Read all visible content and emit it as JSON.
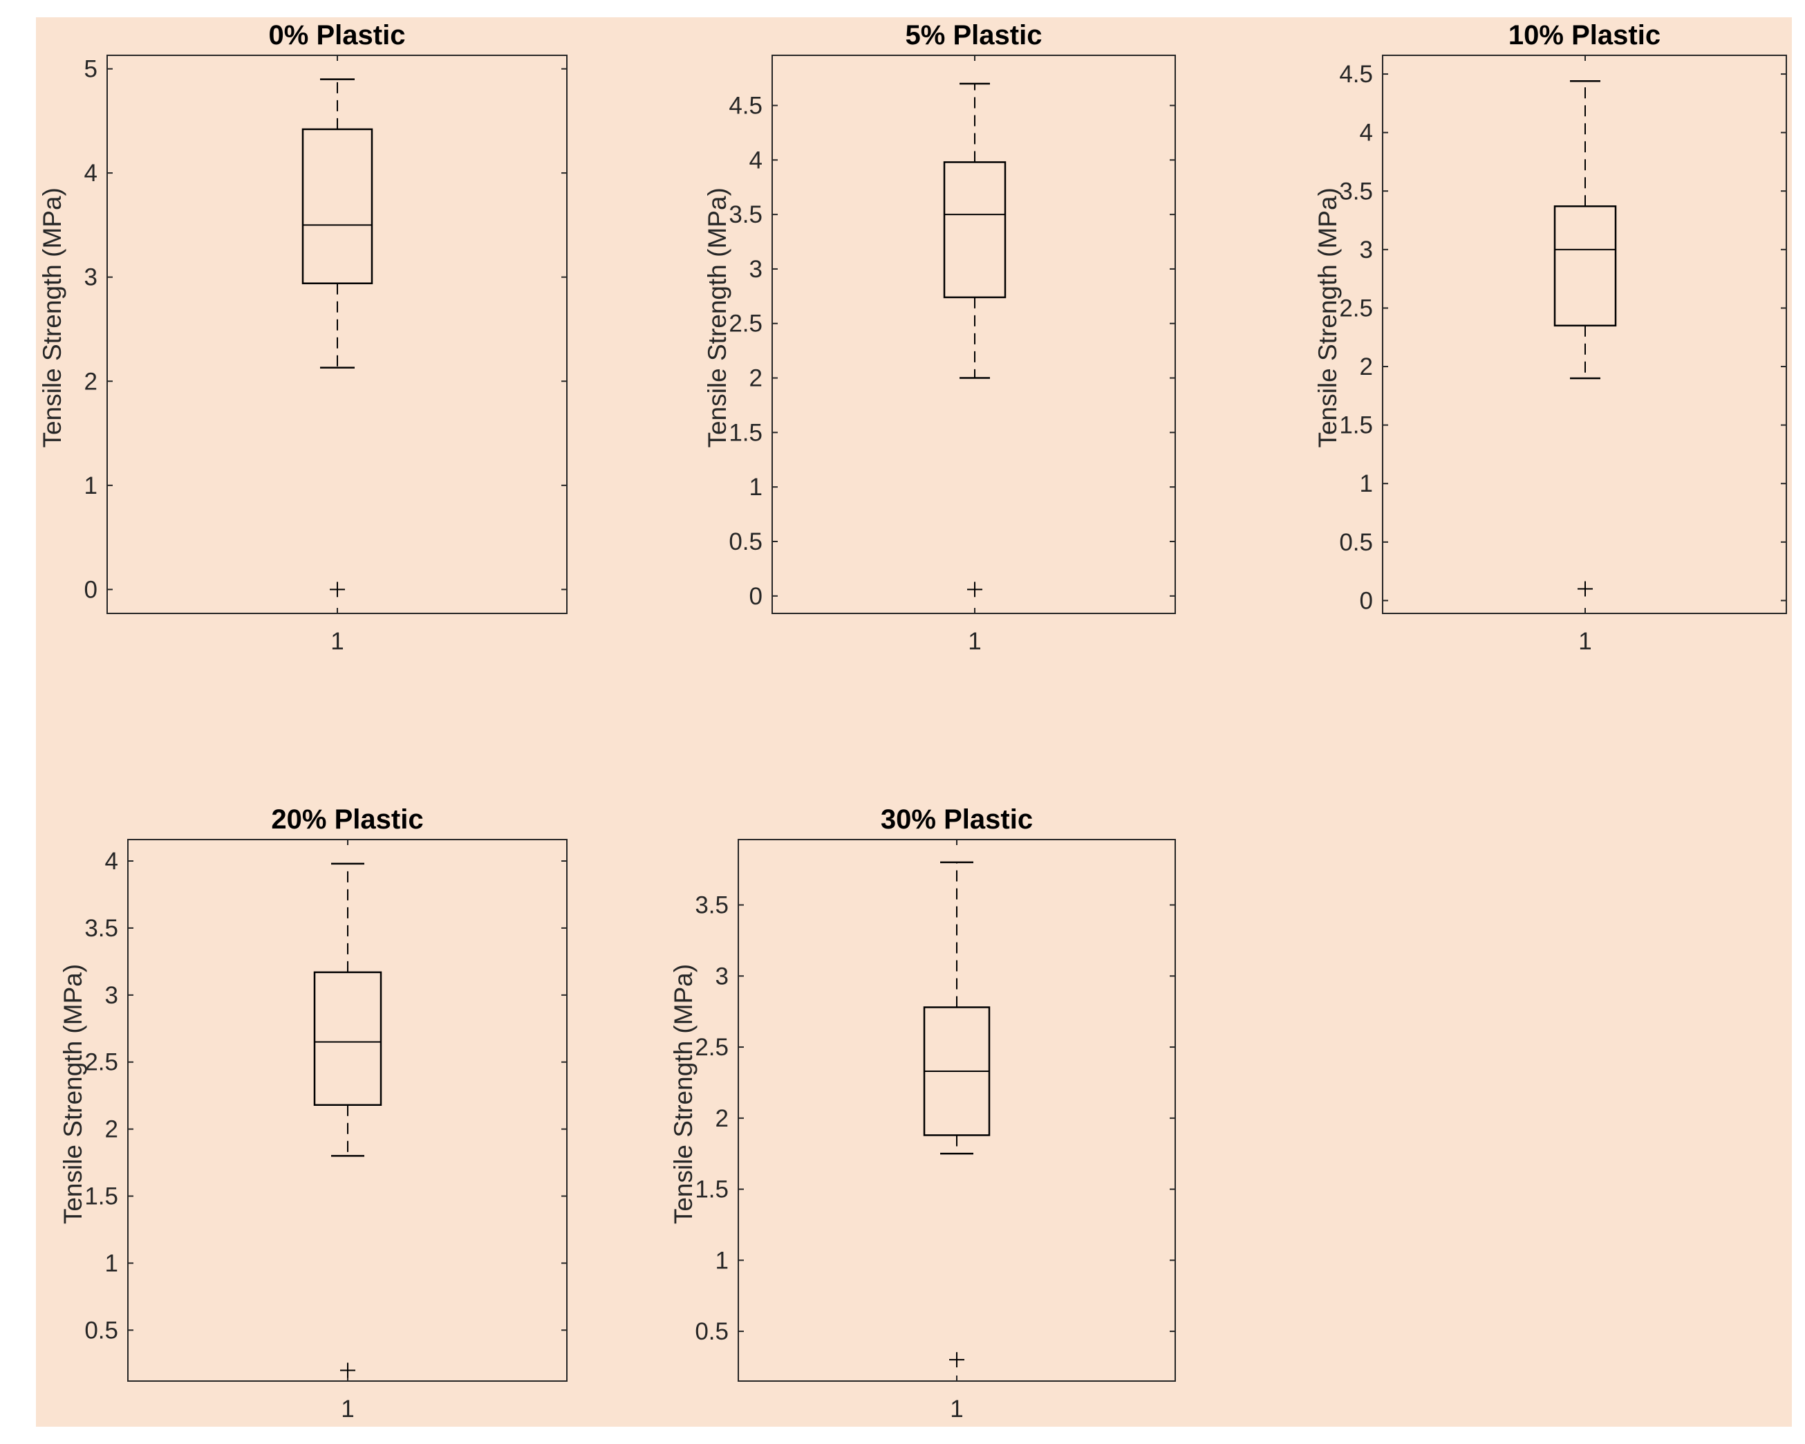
{
  "chart_data": [
    {
      "type": "box",
      "title": "0% Plastic",
      "ylabel": "Tensile Strength (MPa)",
      "xlabel": "",
      "categories": [
        "1"
      ],
      "ylim": [
        -0.23,
        5.13
      ],
      "yticks": [
        0,
        1,
        2,
        3,
        4,
        5
      ],
      "ytick_labels": [
        "0",
        "1",
        "2",
        "3",
        "4",
        "5"
      ],
      "box": {
        "whisker_low": 2.13,
        "q1": 2.94,
        "median": 3.5,
        "q3": 4.42,
        "whisker_high": 4.9
      },
      "outliers": [
        0.0
      ]
    },
    {
      "type": "box",
      "title": "5% Plastic",
      "ylabel": "Tensile Strength (MPa)",
      "xlabel": "",
      "categories": [
        "1"
      ],
      "ylim": [
        -0.16,
        4.96
      ],
      "yticks": [
        0,
        0.5,
        1,
        1.5,
        2,
        2.5,
        3,
        3.5,
        4,
        4.5
      ],
      "ytick_labels": [
        "0",
        "0.5",
        "1",
        "1.5",
        "2",
        "2.5",
        "3",
        "3.5",
        "4",
        "4.5"
      ],
      "box": {
        "whisker_low": 2.0,
        "q1": 2.74,
        "median": 3.5,
        "q3": 3.98,
        "whisker_high": 4.7
      },
      "outliers": [
        0.06
      ]
    },
    {
      "type": "box",
      "title": "10% Plastic",
      "ylabel": "Tensile Strength (MPa)",
      "xlabel": "",
      "categories": [
        "1"
      ],
      "ylim": [
        -0.11,
        4.66
      ],
      "yticks": [
        0,
        0.5,
        1,
        1.5,
        2,
        2.5,
        3,
        3.5,
        4,
        4.5
      ],
      "ytick_labels": [
        "0",
        "0.5",
        "1",
        "1.5",
        "2",
        "2.5",
        "3",
        "3.5",
        "4",
        "4.5"
      ],
      "box": {
        "whisker_low": 1.9,
        "q1": 2.35,
        "median": 3.0,
        "q3": 3.37,
        "whisker_high": 4.44
      },
      "outliers": [
        0.1
      ]
    },
    {
      "type": "box",
      "title": "20% Plastic",
      "ylabel": "Tensile Strength (MPa)",
      "xlabel": "",
      "categories": [
        "1"
      ],
      "ylim": [
        0.12,
        4.16
      ],
      "yticks": [
        0.5,
        1,
        1.5,
        2,
        2.5,
        3,
        3.5,
        4
      ],
      "ytick_labels": [
        "0.5",
        "1",
        "1.5",
        "2",
        "2.5",
        "3",
        "3.5",
        "4"
      ],
      "box": {
        "whisker_low": 1.8,
        "q1": 2.18,
        "median": 2.65,
        "q3": 3.17,
        "whisker_high": 3.98
      },
      "outliers": [
        0.2
      ]
    },
    {
      "type": "box",
      "title": "30% Plastic",
      "ylabel": "Tensile Strength (MPa)",
      "xlabel": "",
      "categories": [
        "1"
      ],
      "ylim": [
        0.15,
        3.96
      ],
      "yticks": [
        0.5,
        1,
        1.5,
        2,
        2.5,
        3,
        3.5
      ],
      "ytick_labels": [
        "0.5",
        "1",
        "1.5",
        "2",
        "2.5",
        "3",
        "3.5"
      ],
      "box": {
        "whisker_low": 1.75,
        "q1": 1.88,
        "median": 2.33,
        "q3": 2.78,
        "whisker_high": 3.8
      },
      "outliers": [
        0.3
      ]
    }
  ],
  "colors": {
    "figure_background": "#fae3d1",
    "axes_background": "#fae3d1",
    "axis_line": "#262626",
    "box_line": "#000000"
  },
  "grid": false
}
